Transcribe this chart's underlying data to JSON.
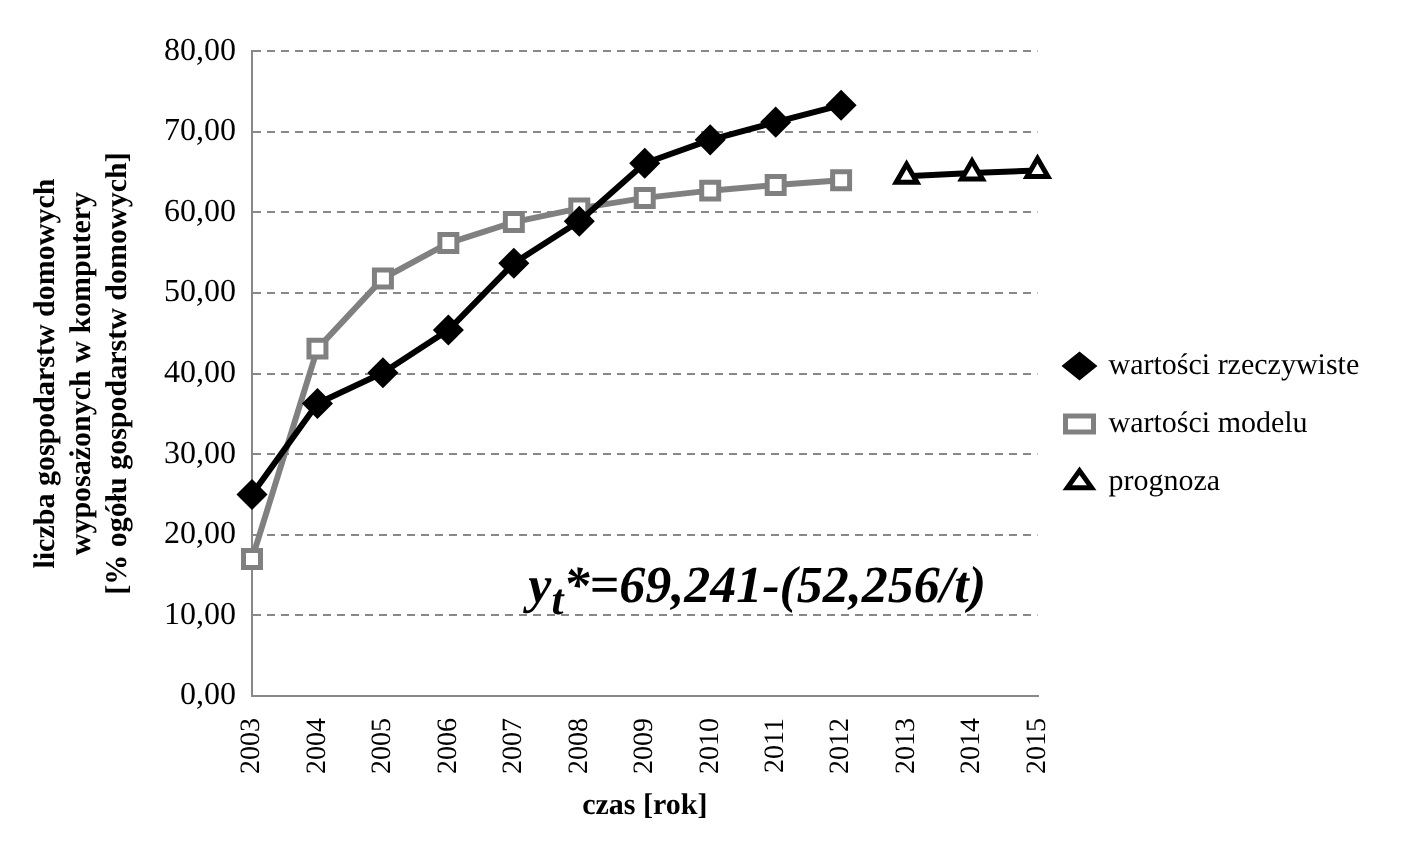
{
  "chart_data": {
    "type": "line",
    "xlabel": "czas [rok]",
    "ylabel": "liczba gospodarstw domowych\nwyposażonych w komputery\n[% ogółu gospodarstw domowych]",
    "categories": [
      "2003",
      "2004",
      "2005",
      "2006",
      "2007",
      "2008",
      "2009",
      "2010",
      "2011",
      "2012",
      "2013",
      "2014",
      "2015"
    ],
    "series": [
      {
        "name": "wartości rzeczywiste",
        "color": "#000000",
        "marker": "diamond",
        "values": [
          25.0,
          36.3,
          40.1,
          45.4,
          53.7,
          58.9,
          66.1,
          69.0,
          71.2,
          73.3,
          null,
          null,
          null
        ]
      },
      {
        "name": "wartości modelu",
        "color": "#808080",
        "marker": "square",
        "values": [
          17.0,
          43.1,
          51.8,
          56.2,
          58.8,
          60.5,
          61.8,
          62.7,
          63.4,
          64.0,
          null,
          null,
          null
        ]
      },
      {
        "name": "prognoza",
        "color": "#000000",
        "marker": "triangle",
        "values": [
          null,
          null,
          null,
          null,
          null,
          null,
          null,
          null,
          null,
          null,
          64.5,
          64.9,
          65.2
        ]
      }
    ],
    "ylim": [
      0,
      80
    ],
    "yticks": [
      {
        "value": 0,
        "label": "0,00"
      },
      {
        "value": 10,
        "label": "10,00"
      },
      {
        "value": 20,
        "label": "20,00"
      },
      {
        "value": 30,
        "label": "30,00"
      },
      {
        "value": 40,
        "label": "40,00"
      },
      {
        "value": 50,
        "label": "50,00"
      },
      {
        "value": 60,
        "label": "60,00"
      },
      {
        "value": 70,
        "label": "70,00"
      },
      {
        "value": 80,
        "label": "80,00"
      }
    ],
    "grid": "y",
    "legend": "right",
    "line_style": "solid",
    "annotations": [
      "y$_{t}$*=69,241-(52,256/t)"
    ]
  }
}
